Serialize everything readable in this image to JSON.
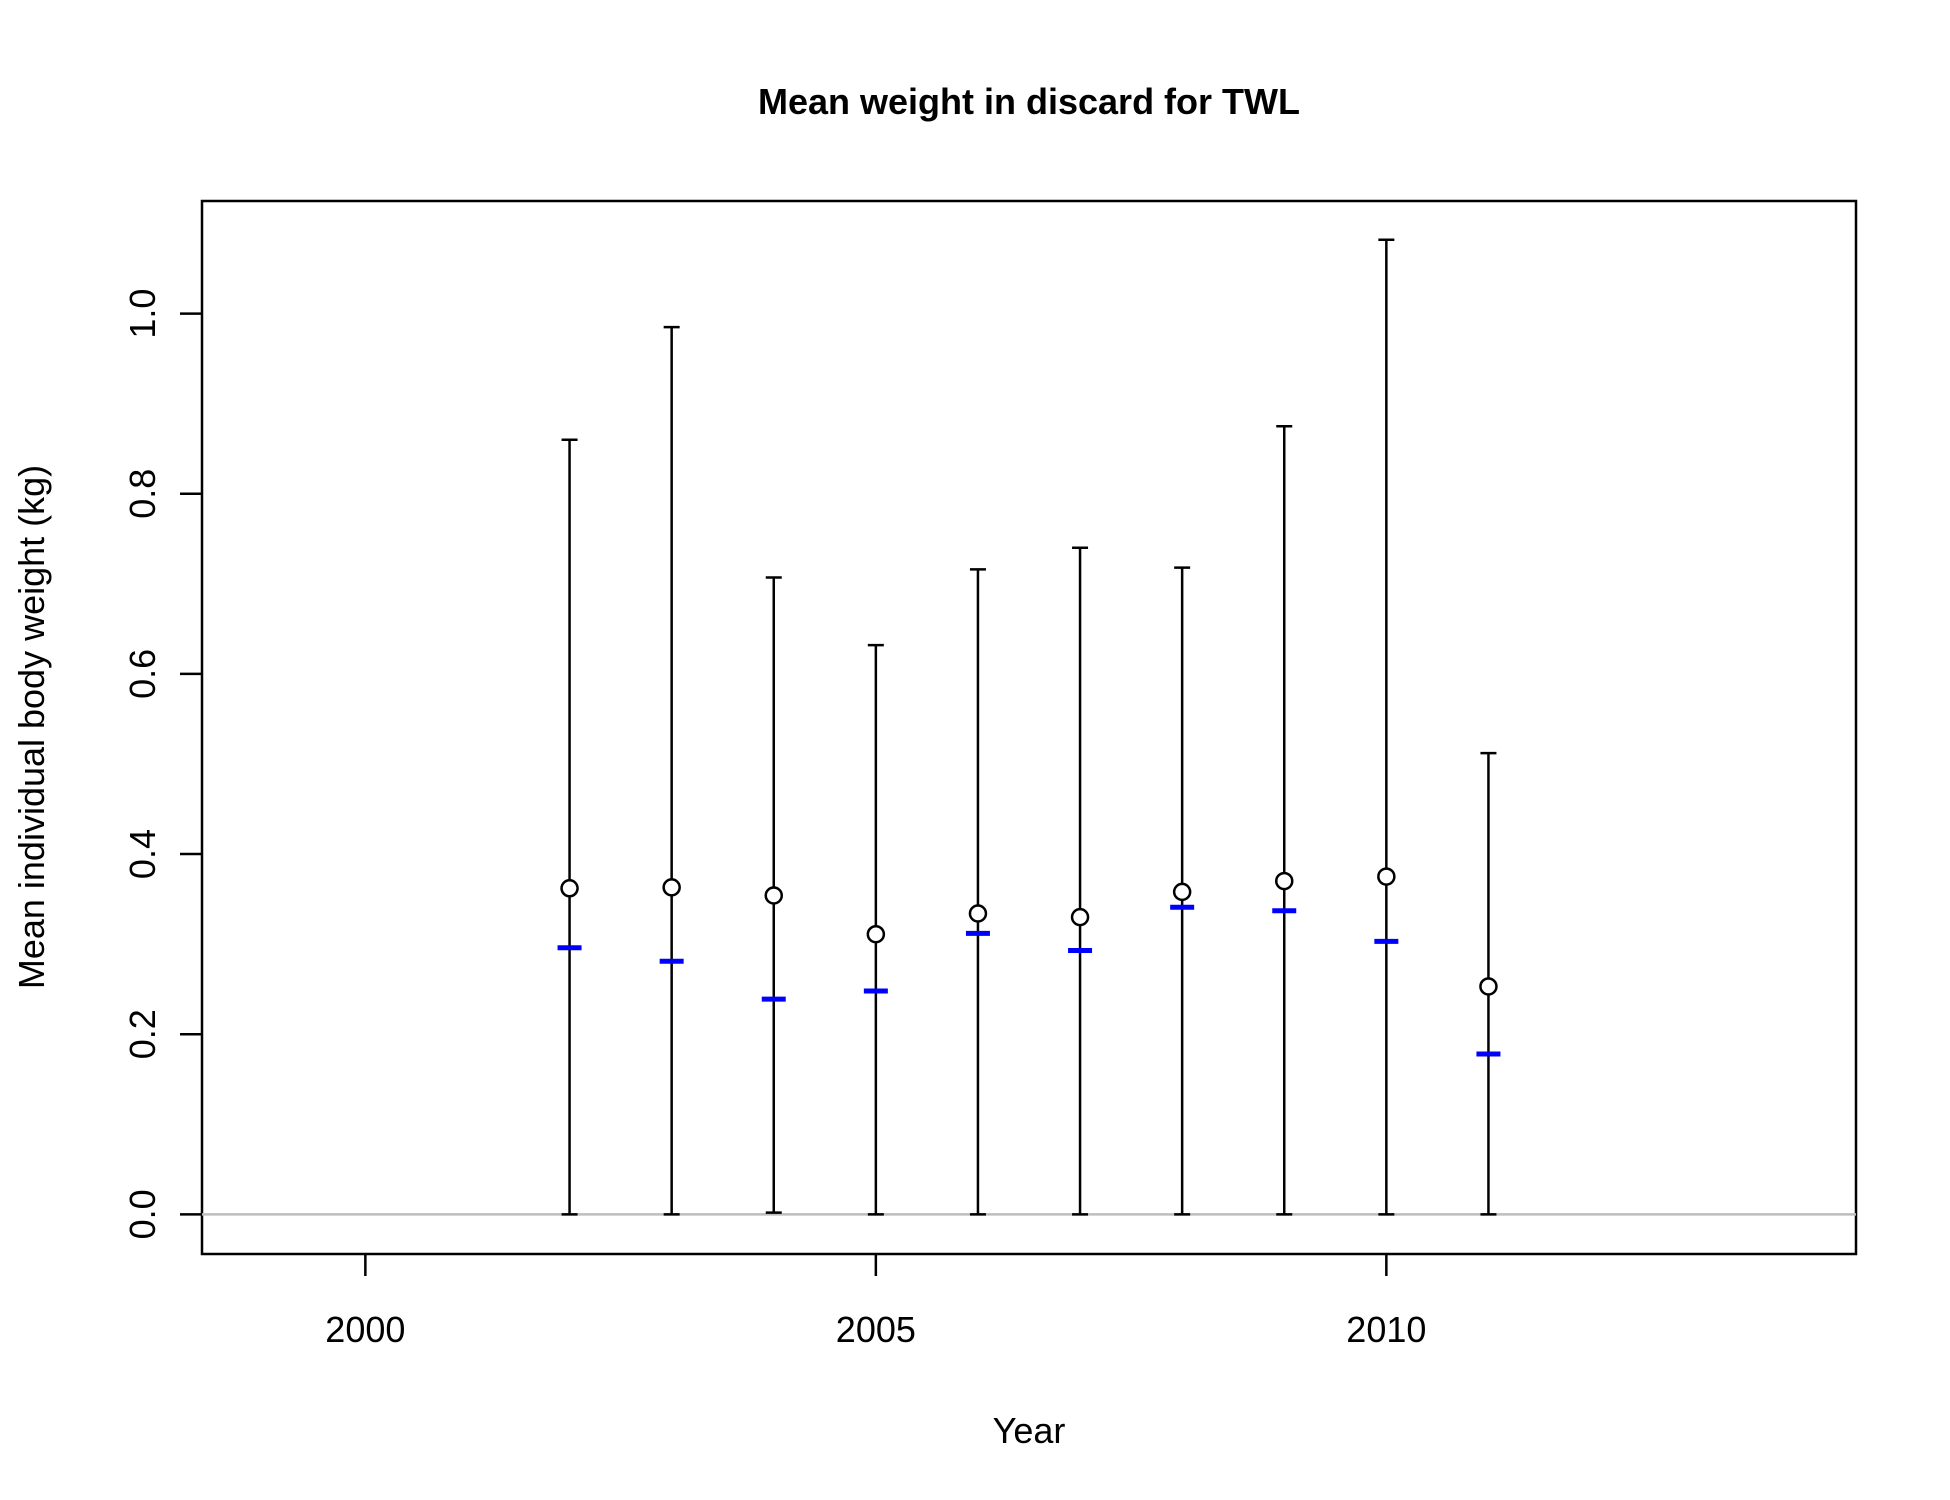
{
  "chart_data": {
    "type": "scatter",
    "title": "Mean weight in discard for TWL",
    "xlabel": "Year",
    "ylabel": "Mean individual body weight (kg)",
    "xlim": [
      1998.4,
      2014.6
    ],
    "ylim": [
      -0.044,
      1.125
    ],
    "xticks": [
      2000,
      2005,
      2010
    ],
    "yticks": [
      0.0,
      0.2,
      0.4,
      0.6,
      0.8,
      1.0
    ],
    "ytick_labels": [
      "0.0",
      "0.2",
      "0.4",
      "0.6",
      "0.8",
      "1.0"
    ],
    "reference_line_y": 0,
    "grid": false,
    "colors": {
      "observed": "#000000",
      "expected": "#0000ff",
      "reference": "#bebebe"
    },
    "points": [
      {
        "year": 2002,
        "observed": 0.362,
        "expected": 0.296,
        "lower": 0.0,
        "upper": 0.86
      },
      {
        "year": 2003,
        "observed": 0.363,
        "expected": 0.281,
        "lower": 0.0,
        "upper": 0.985
      },
      {
        "year": 2004,
        "observed": 0.354,
        "expected": 0.239,
        "lower": 0.002,
        "upper": 0.707
      },
      {
        "year": 2005,
        "observed": 0.311,
        "expected": 0.248,
        "lower": 0.0,
        "upper": 0.632
      },
      {
        "year": 2006,
        "observed": 0.334,
        "expected": 0.312,
        "lower": 0.0,
        "upper": 0.716
      },
      {
        "year": 2007,
        "observed": 0.33,
        "expected": 0.293,
        "lower": 0.0,
        "upper": 0.74
      },
      {
        "year": 2008,
        "observed": 0.358,
        "expected": 0.341,
        "lower": 0.0,
        "upper": 0.718
      },
      {
        "year": 2009,
        "observed": 0.37,
        "expected": 0.337,
        "lower": 0.0,
        "upper": 0.875
      },
      {
        "year": 2010,
        "observed": 0.375,
        "expected": 0.303,
        "lower": 0.0,
        "upper": 1.082
      },
      {
        "year": 2011,
        "observed": 0.253,
        "expected": 0.178,
        "lower": 0.0,
        "upper": 0.512
      }
    ]
  }
}
